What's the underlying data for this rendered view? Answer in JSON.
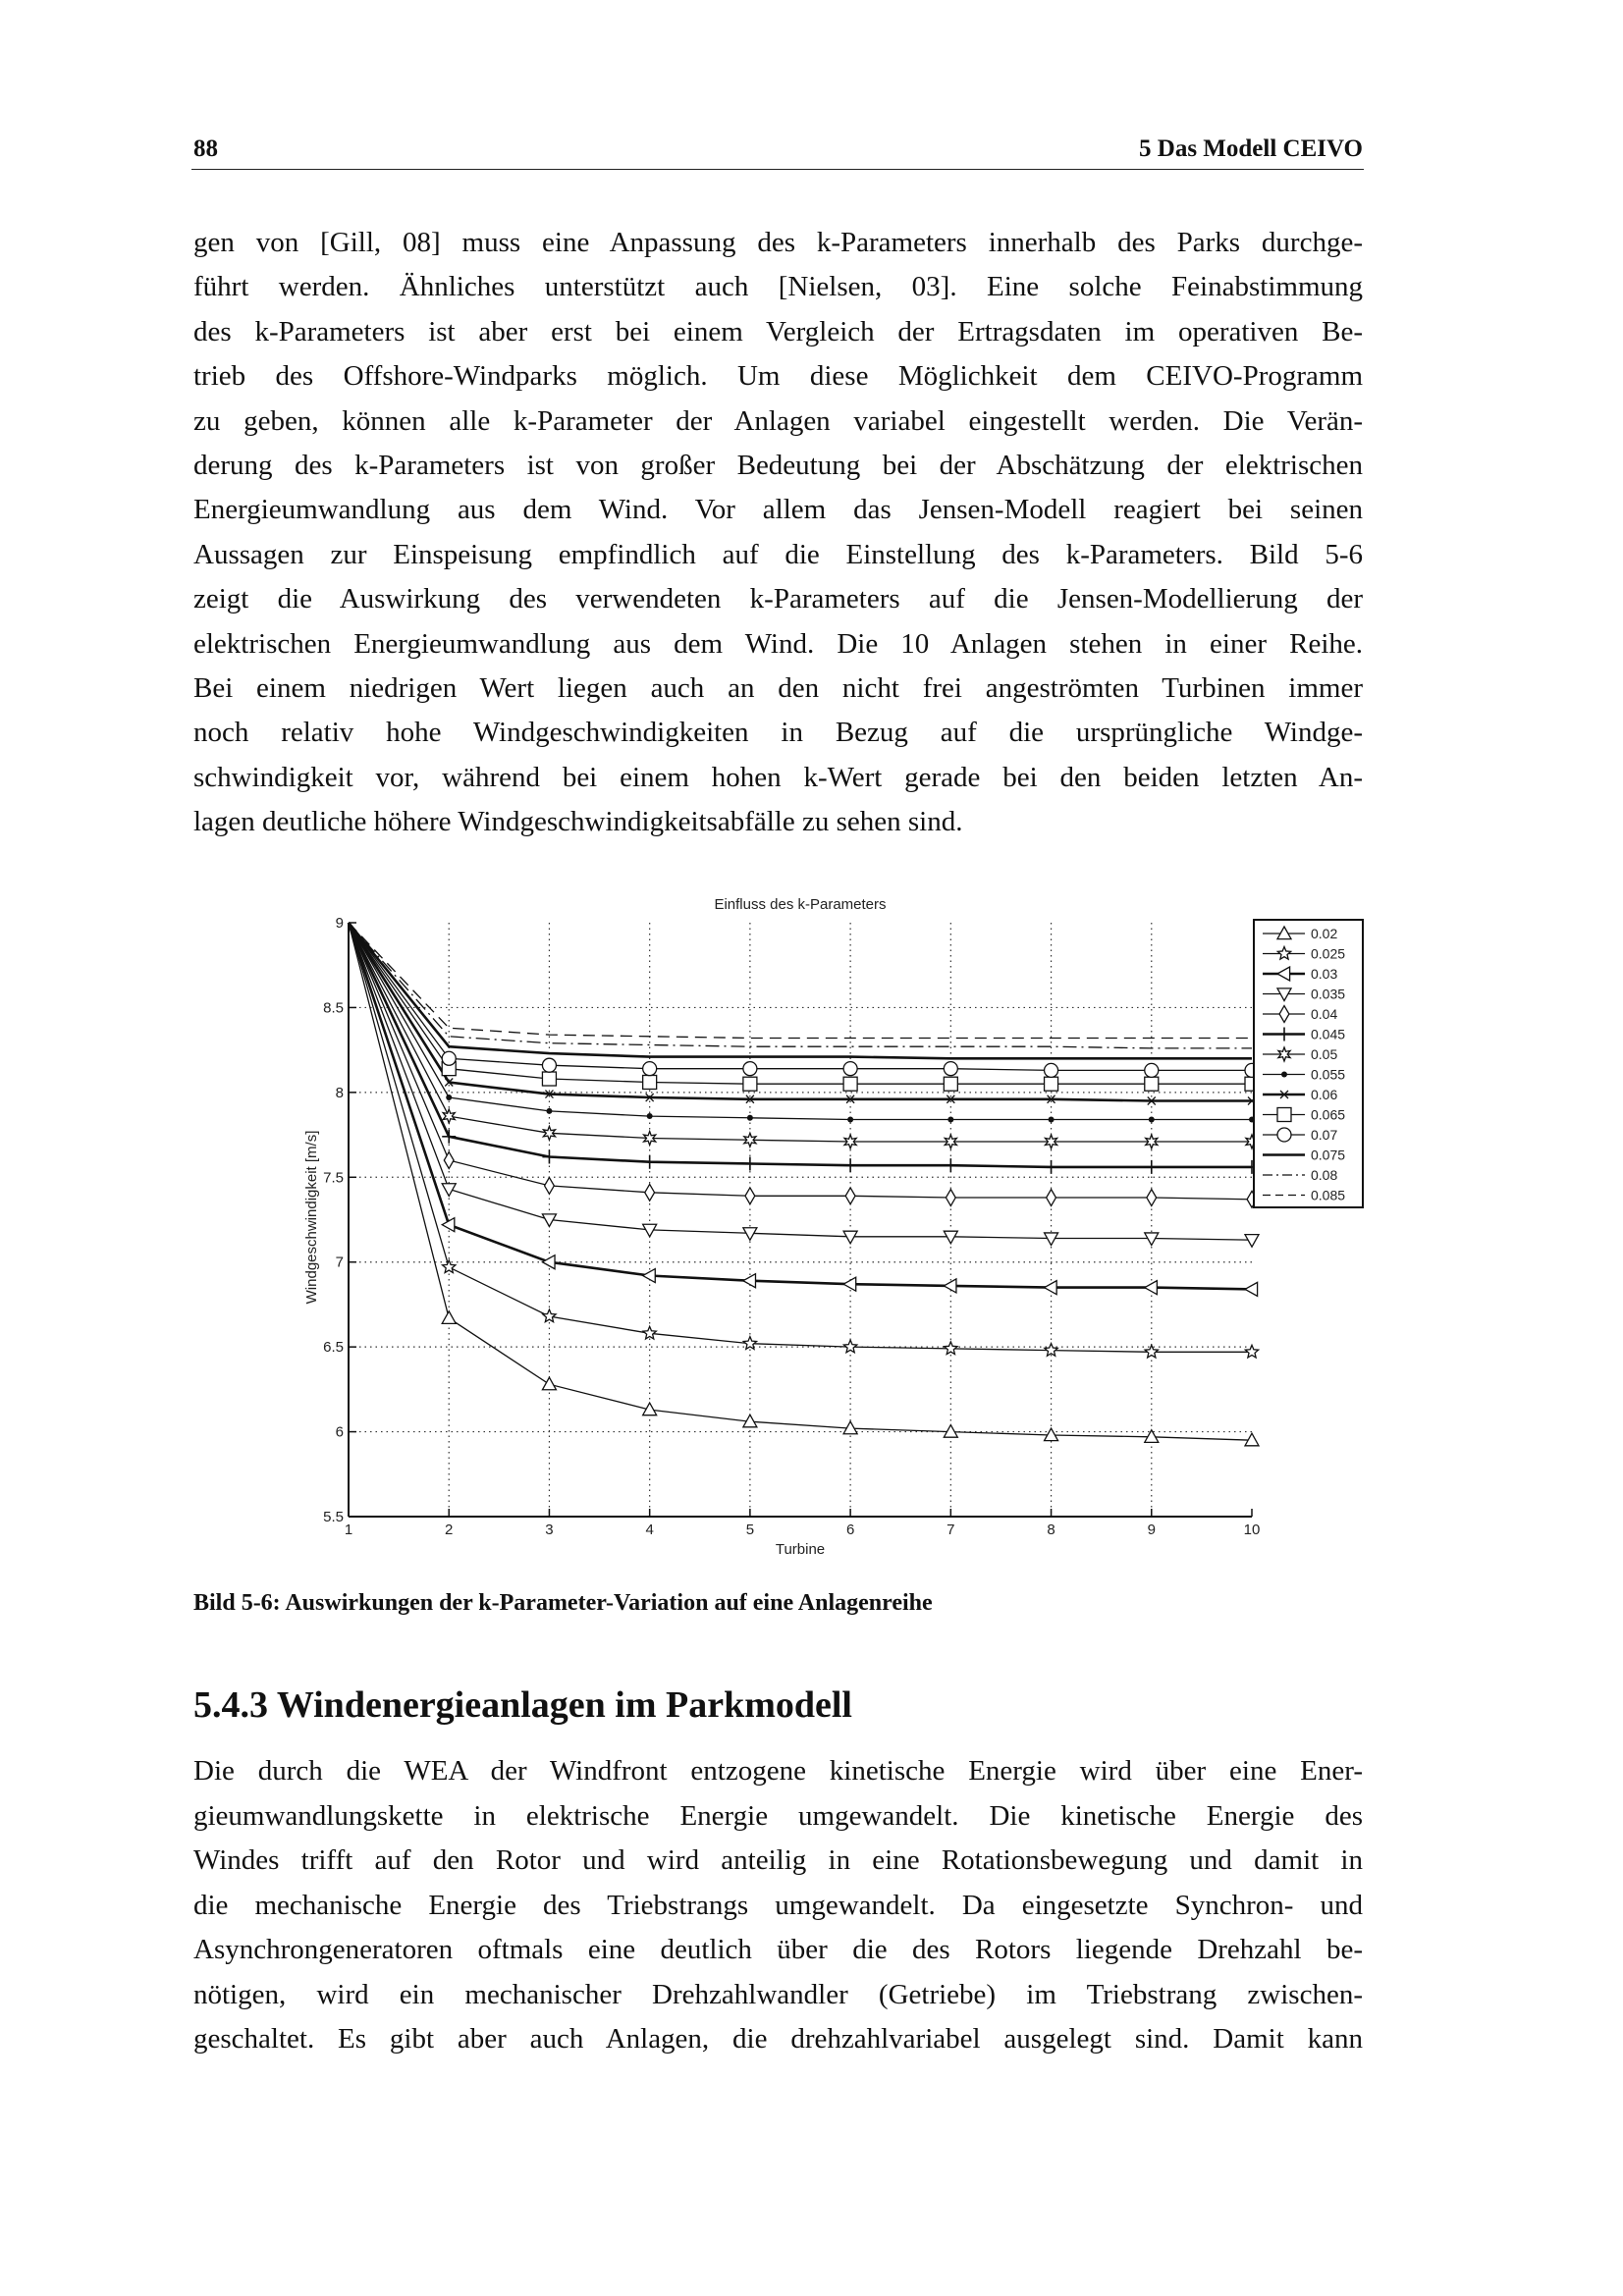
{
  "header": {
    "page_number": "88",
    "chapter": "5 Das Modell CEIVO"
  },
  "paragraph1": [
    "gen von [Gill, 08] muss eine Anpassung des k-Parameters innerhalb des Parks durchge-",
    "führt werden. Ähnliches unterstützt auch [Nielsen, 03]. Eine solche Feinabstimmung",
    "des k-Parameters ist aber erst bei einem Vergleich der Ertragsdaten im operativen Be-",
    "trieb des Offshore-Windparks möglich. Um diese Möglichkeit dem CEIVO-Programm",
    "zu geben, können alle k-Parameter der Anlagen variabel eingestellt werden. Die Verän-",
    "derung des k-Parameters ist von großer Bedeutung bei der Abschätzung der elektrischen",
    "Energieumwandlung aus dem Wind. Vor allem das Jensen-Modell reagiert bei seinen",
    "Aussagen zur Einspeisung empfindlich auf die Einstellung des k-Parameters. Bild 5-6",
    "zeigt die Auswirkung des verwendeten k-Parameters auf die Jensen-Modellierung der",
    "elektrischen Energieumwandlung aus dem Wind. Die 10 Anlagen stehen in einer Reihe.",
    "Bei einem niedrigen Wert liegen auch an den nicht frei angeströmten Turbinen immer",
    "noch relativ hohe Windgeschwindigkeiten in Bezug auf die ursprüngliche Windge-",
    "schwindigkeit vor, während bei einem hohen k-Wert gerade bei den beiden letzten An-",
    "lagen deutliche höhere Windgeschwindigkeitsabfälle zu sehen sind."
  ],
  "figure_caption": "Bild 5-6: Auswirkungen der k-Parameter-Variation auf eine Anlagenreihe",
  "section_heading": "5.4.3 Windenergieanlagen im Parkmodell",
  "paragraph2": [
    "Die durch die WEA der Windfront entzogene kinetische Energie wird über eine Ener-",
    "gieumwandlungskette in elektrische Energie umgewandelt. Die kinetische Energie des",
    "Windes trifft auf den Rotor und wird anteilig in eine Rotationsbewegung und damit in",
    "die mechanische Energie des Triebstrangs umgewandelt. Da eingesetzte Synchron- und",
    "Asynchrongeneratoren oftmals eine deutlich über die des Rotors liegende Drehzahl be-",
    "nötigen, wird ein mechanischer Drehzahlwandler (Getriebe) im Triebstrang zwischen-",
    "geschaltet. Es gibt aber auch Anlagen, die drehzahlvariabel ausgelegt sind. Damit kann"
  ],
  "chart_data": {
    "type": "line",
    "title": "Einfluss des k-Parameters",
    "xlabel": "Turbine",
    "ylabel": "Windgeschwindigkeit [m/s]",
    "xlim": [
      1,
      10
    ],
    "ylim": [
      5.5,
      9
    ],
    "xticks": [
      "1",
      "2",
      "3",
      "4",
      "5",
      "6",
      "7",
      "8",
      "9",
      "10"
    ],
    "yticks": [
      "5.5",
      "6",
      "6.5",
      "7",
      "7.5",
      "8",
      "8.5",
      "9"
    ],
    "grid": true,
    "legend_placement": "outside-right",
    "line_color": "#111111",
    "x": [
      1,
      2,
      3,
      4,
      5,
      6,
      7,
      8,
      9,
      10
    ],
    "series": [
      {
        "name": "0.02",
        "marker": "triangle-up",
        "style": "solid",
        "values": [
          9,
          6.67,
          6.28,
          6.13,
          6.06,
          6.02,
          6.0,
          5.98,
          5.97,
          5.95
        ]
      },
      {
        "name": "0.025",
        "marker": "pentagram",
        "style": "solid",
        "values": [
          9,
          6.97,
          6.68,
          6.58,
          6.52,
          6.5,
          6.49,
          6.48,
          6.47,
          6.47
        ]
      },
      {
        "name": "0.03",
        "marker": "triangle-left",
        "style": "solid",
        "values": [
          9,
          7.22,
          7.0,
          6.92,
          6.89,
          6.87,
          6.86,
          6.85,
          6.85,
          6.84
        ]
      },
      {
        "name": "0.035",
        "marker": "triangle-down",
        "style": "solid",
        "values": [
          9,
          7.43,
          7.25,
          7.19,
          7.17,
          7.15,
          7.15,
          7.14,
          7.14,
          7.13
        ]
      },
      {
        "name": "0.04",
        "marker": "diamond",
        "style": "solid",
        "values": [
          9,
          7.6,
          7.45,
          7.41,
          7.39,
          7.39,
          7.38,
          7.38,
          7.38,
          7.37
        ]
      },
      {
        "name": "0.045",
        "marker": "plus",
        "style": "solid",
        "values": [
          9,
          7.74,
          7.62,
          7.59,
          7.58,
          7.57,
          7.57,
          7.56,
          7.56,
          7.56
        ]
      },
      {
        "name": "0.05",
        "marker": "hexagram",
        "style": "solid",
        "values": [
          9,
          7.86,
          7.76,
          7.73,
          7.72,
          7.71,
          7.71,
          7.71,
          7.71,
          7.71
        ]
      },
      {
        "name": "0.055",
        "marker": "dot",
        "style": "solid",
        "values": [
          9,
          7.97,
          7.89,
          7.86,
          7.85,
          7.84,
          7.84,
          7.84,
          7.84,
          7.84
        ]
      },
      {
        "name": "0.06",
        "marker": "x",
        "style": "solid",
        "values": [
          9,
          8.06,
          7.99,
          7.97,
          7.96,
          7.96,
          7.96,
          7.96,
          7.95,
          7.95
        ]
      },
      {
        "name": "0.065",
        "marker": "square",
        "style": "solid",
        "values": [
          9,
          8.14,
          8.08,
          8.06,
          8.05,
          8.05,
          8.05,
          8.05,
          8.05,
          8.05
        ]
      },
      {
        "name": "0.07",
        "marker": "circle",
        "style": "solid",
        "values": [
          9,
          8.2,
          8.16,
          8.14,
          8.14,
          8.14,
          8.14,
          8.13,
          8.13,
          8.13
        ]
      },
      {
        "name": "0.075",
        "marker": "none",
        "style": "solid",
        "values": [
          9,
          8.27,
          8.23,
          8.21,
          8.21,
          8.21,
          8.2,
          8.2,
          8.2,
          8.2
        ]
      },
      {
        "name": "0.08",
        "marker": "none",
        "style": "dashdot",
        "values": [
          9,
          8.33,
          8.29,
          8.28,
          8.27,
          8.27,
          8.27,
          8.27,
          8.26,
          8.26
        ]
      },
      {
        "name": "0.085",
        "marker": "none",
        "style": "dashed",
        "values": [
          9,
          8.38,
          8.34,
          8.33,
          8.32,
          8.32,
          8.32,
          8.32,
          8.32,
          8.32
        ]
      }
    ]
  }
}
